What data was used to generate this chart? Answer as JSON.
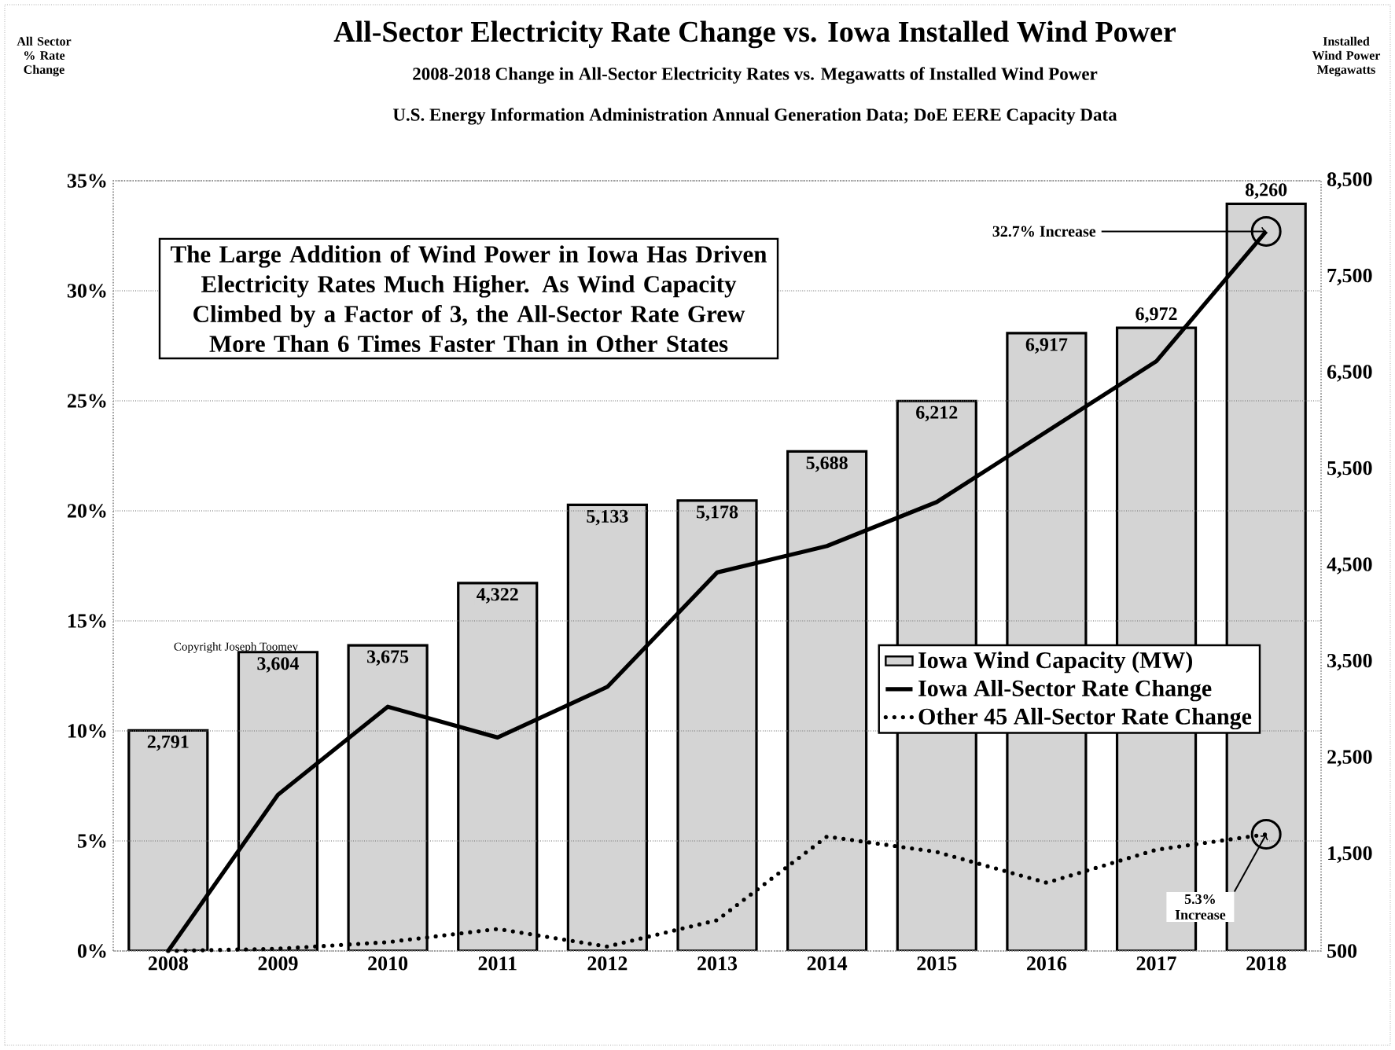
{
  "chart_data": {
    "type": "bar",
    "title": "All-Sector Electricity Rate Change vs. Iowa Installed Wind Power",
    "subtitle": "2008-2018 Change in All-Sector Electricity Rates vs. Megawatts of Installed Wind Power",
    "categories": [
      "2008",
      "2009",
      "2010",
      "2011",
      "2012",
      "2013",
      "2014",
      "2015",
      "2016",
      "2017",
      "2018"
    ],
    "series": [
      {
        "name": "Iowa Wind Capacity (MW)",
        "axis": "y2",
        "color": "#d4d4d4",
        "values": [
          2791,
          3604,
          3675,
          4322,
          5133,
          5178,
          5688,
          6212,
          6917,
          6972,
          8260
        ],
        "value_labels": [
          "2,791",
          "3,604",
          "3,675",
          "4,322",
          "5,133",
          "5,178",
          "5,688",
          "6,212",
          "6,917",
          "6,972",
          "8,260"
        ]
      },
      {
        "name": "Iowa All-Sector Rate Change",
        "type": "line",
        "color": "#000000",
        "line_style": "solid",
        "values": [
          0,
          7.1,
          11.1,
          9.7,
          12.0,
          17.2,
          18.4,
          20.4,
          23.6,
          26.8,
          32.7
        ]
      },
      {
        "name": "Other 45 All-Sector Rate Change",
        "type": "line",
        "color": "#000000",
        "line_style": "dotted",
        "values": [
          0,
          0.1,
          0.4,
          1.0,
          0.2,
          1.4,
          5.2,
          4.5,
          3.1,
          4.6,
          5.3
        ]
      }
    ],
    "ylim": [
      0,
      35
    ],
    "yticks": [
      {
        "value": 0,
        "label": "0%"
      },
      {
        "value": 5,
        "label": "5%"
      },
      {
        "value": 10,
        "label": "10%"
      },
      {
        "value": 15,
        "label": "15%"
      },
      {
        "value": 20,
        "label": "20%"
      },
      {
        "value": 25,
        "label": "25%"
      },
      {
        "value": 30,
        "label": "30%"
      },
      {
        "value": 35,
        "label": "35%"
      }
    ],
    "y2lim": [
      500,
      8500
    ],
    "y2ticks": [
      500,
      {
        "value": 1500,
        "label": "1,500"
      },
      {
        "value": 2500,
        "label": "2,500"
      },
      {
        "value": 3500,
        "label": "3,500"
      },
      {
        "value": 4500,
        "label": "4,500"
      },
      {
        "value": 5500,
        "label": "5,500"
      },
      {
        "value": 6500,
        "label": "6,500"
      },
      {
        "value": 7500,
        "label": "7,500"
      },
      {
        "value": 8500,
        "label": "8,500"
      }
    ],
    "grid": "y",
    "legend": "right",
    "annotations": [
      "The Large Addition of Wind Power in Iowa Has Driven Electricity Rates Much Higher. As Wind Capacity Climbed by a Factor of 3, the All-Sector Rate Grew More Than 6 Times Faster Than in Other States",
      "Copyright Joseph Toomey",
      "U.S. Energy Information Administration Annual Generation Data; DoE EERE Capacity Data",
      "All Sector % Rate Change",
      "Installed Wind Power Megawatts",
      {
        "text": "32.7% Increase",
        "x": "2018",
        "y": 32.7
      },
      {
        "text": "5.3% Increase",
        "x": "2018",
        "y": 5.3
      }
    ]
  }
}
